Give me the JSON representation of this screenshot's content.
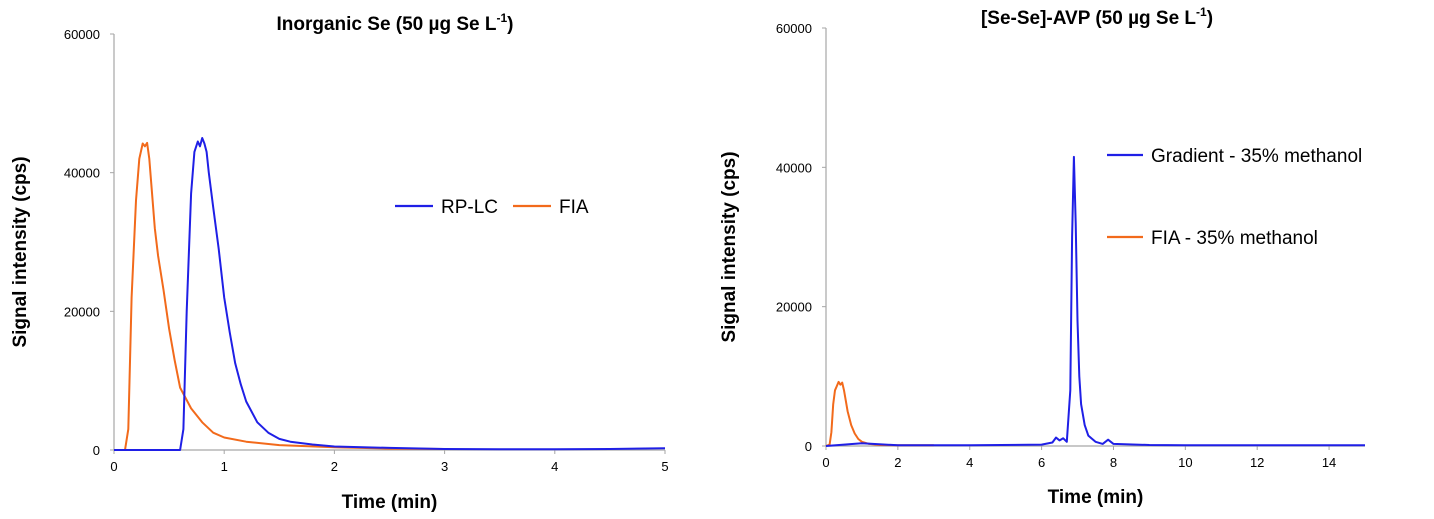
{
  "colors": {
    "rp": "#1f1fe6",
    "fia": "#f26a1b",
    "axis": "#a6a6a6"
  },
  "chart_data": [
    {
      "type": "line",
      "title": "Inorganic Se (50 µg Se L",
      "title_sup": "-1",
      "title_end": ")",
      "xlabel": "Time (min)",
      "ylabel": "Signal intensity (cps)",
      "xlim": [
        0,
        5
      ],
      "ylim": [
        0,
        60000
      ],
      "xticks": [
        0,
        1,
        2,
        3,
        4,
        5
      ],
      "yticks": [
        0,
        20000,
        40000,
        60000
      ],
      "xtick_labels": [
        "0",
        "1",
        "2",
        "3",
        "4",
        "5"
      ],
      "ytick_labels": [
        "0",
        "20000",
        "40000",
        "60000"
      ],
      "grid": false,
      "legend_position": "right",
      "legend_layout": "horizontal",
      "series": [
        {
          "name": "RP-LC",
          "color": "#1f1fe6",
          "x": [
            0,
            0.6,
            0.63,
            0.66,
            0.7,
            0.73,
            0.76,
            0.78,
            0.8,
            0.82,
            0.84,
            0.86,
            0.9,
            0.95,
            1.0,
            1.05,
            1.1,
            1.15,
            1.2,
            1.3,
            1.4,
            1.5,
            1.6,
            1.8,
            2.0,
            2.5,
            3.0,
            3.5,
            4.0,
            4.5,
            5.0
          ],
          "y": [
            0,
            0,
            3000,
            20000,
            37000,
            43000,
            44500,
            43800,
            45000,
            44200,
            43000,
            40000,
            35000,
            29000,
            22000,
            17000,
            12500,
            9500,
            7000,
            4000,
            2500,
            1600,
            1200,
            800,
            500,
            300,
            150,
            100,
            100,
            150,
            250
          ]
        },
        {
          "name": "FIA",
          "color": "#f26a1b",
          "x": [
            0,
            0.1,
            0.13,
            0.16,
            0.2,
            0.23,
            0.26,
            0.28,
            0.3,
            0.32,
            0.34,
            0.37,
            0.4,
            0.45,
            0.5,
            0.55,
            0.6,
            0.7,
            0.8,
            0.9,
            1.0,
            1.2,
            1.5,
            2.0,
            2.5,
            3.0
          ],
          "y": [
            0,
            0,
            3000,
            22000,
            36000,
            42000,
            44200,
            43800,
            44300,
            42000,
            38000,
            32000,
            28000,
            23000,
            17500,
            13000,
            9000,
            6000,
            4000,
            2500,
            1800,
            1200,
            700,
            400,
            200,
            150
          ]
        }
      ]
    },
    {
      "type": "line",
      "title": "[Se-Se]-AVP (50 µg Se L",
      "title_sup": "-1",
      "title_end": ")",
      "xlabel": "Time (min)",
      "ylabel": "Signal intensity (cps)",
      "xlim": [
        0,
        15
      ],
      "ylim": [
        0,
        60000
      ],
      "xticks": [
        0,
        2,
        4,
        6,
        8,
        10,
        12,
        14
      ],
      "yticks": [
        0,
        20000,
        40000,
        60000
      ],
      "xtick_labels": [
        "0",
        "2",
        "4",
        "6",
        "8",
        "10",
        "12",
        "14"
      ],
      "ytick_labels": [
        "0",
        "20000",
        "40000",
        "60000"
      ],
      "grid": false,
      "legend_position": "right",
      "legend_layout": "vertical",
      "series": [
        {
          "name": "Gradient - 35% methanol",
          "color": "#1f1fe6",
          "x": [
            0,
            0.5,
            1.0,
            2.0,
            4.0,
            6.0,
            6.3,
            6.4,
            6.5,
            6.6,
            6.7,
            6.8,
            6.85,
            6.9,
            6.95,
            7.0,
            7.05,
            7.1,
            7.2,
            7.3,
            7.5,
            7.7,
            7.85,
            8.0,
            9.0,
            10.0,
            12.0,
            14.0,
            15.0
          ],
          "y": [
            0,
            200,
            400,
            100,
            100,
            200,
            500,
            1200,
            800,
            1100,
            600,
            8000,
            30000,
            41500,
            32000,
            18000,
            10000,
            6000,
            3000,
            1500,
            600,
            300,
            900,
            300,
            150,
            100,
            100,
            100,
            100
          ]
        },
        {
          "name": "FIA - 35% methanol",
          "color": "#f26a1b",
          "x": [
            0,
            0.1,
            0.15,
            0.2,
            0.25,
            0.3,
            0.35,
            0.4,
            0.45,
            0.5,
            0.55,
            0.6,
            0.7,
            0.8,
            0.9,
            1.0,
            1.2,
            1.5,
            2.0,
            2.5,
            3.0
          ],
          "y": [
            0,
            200,
            2000,
            6000,
            8000,
            8600,
            9200,
            8800,
            9100,
            8000,
            6500,
            5000,
            3000,
            1800,
            1000,
            600,
            300,
            150,
            100,
            100,
            100
          ]
        }
      ]
    }
  ]
}
